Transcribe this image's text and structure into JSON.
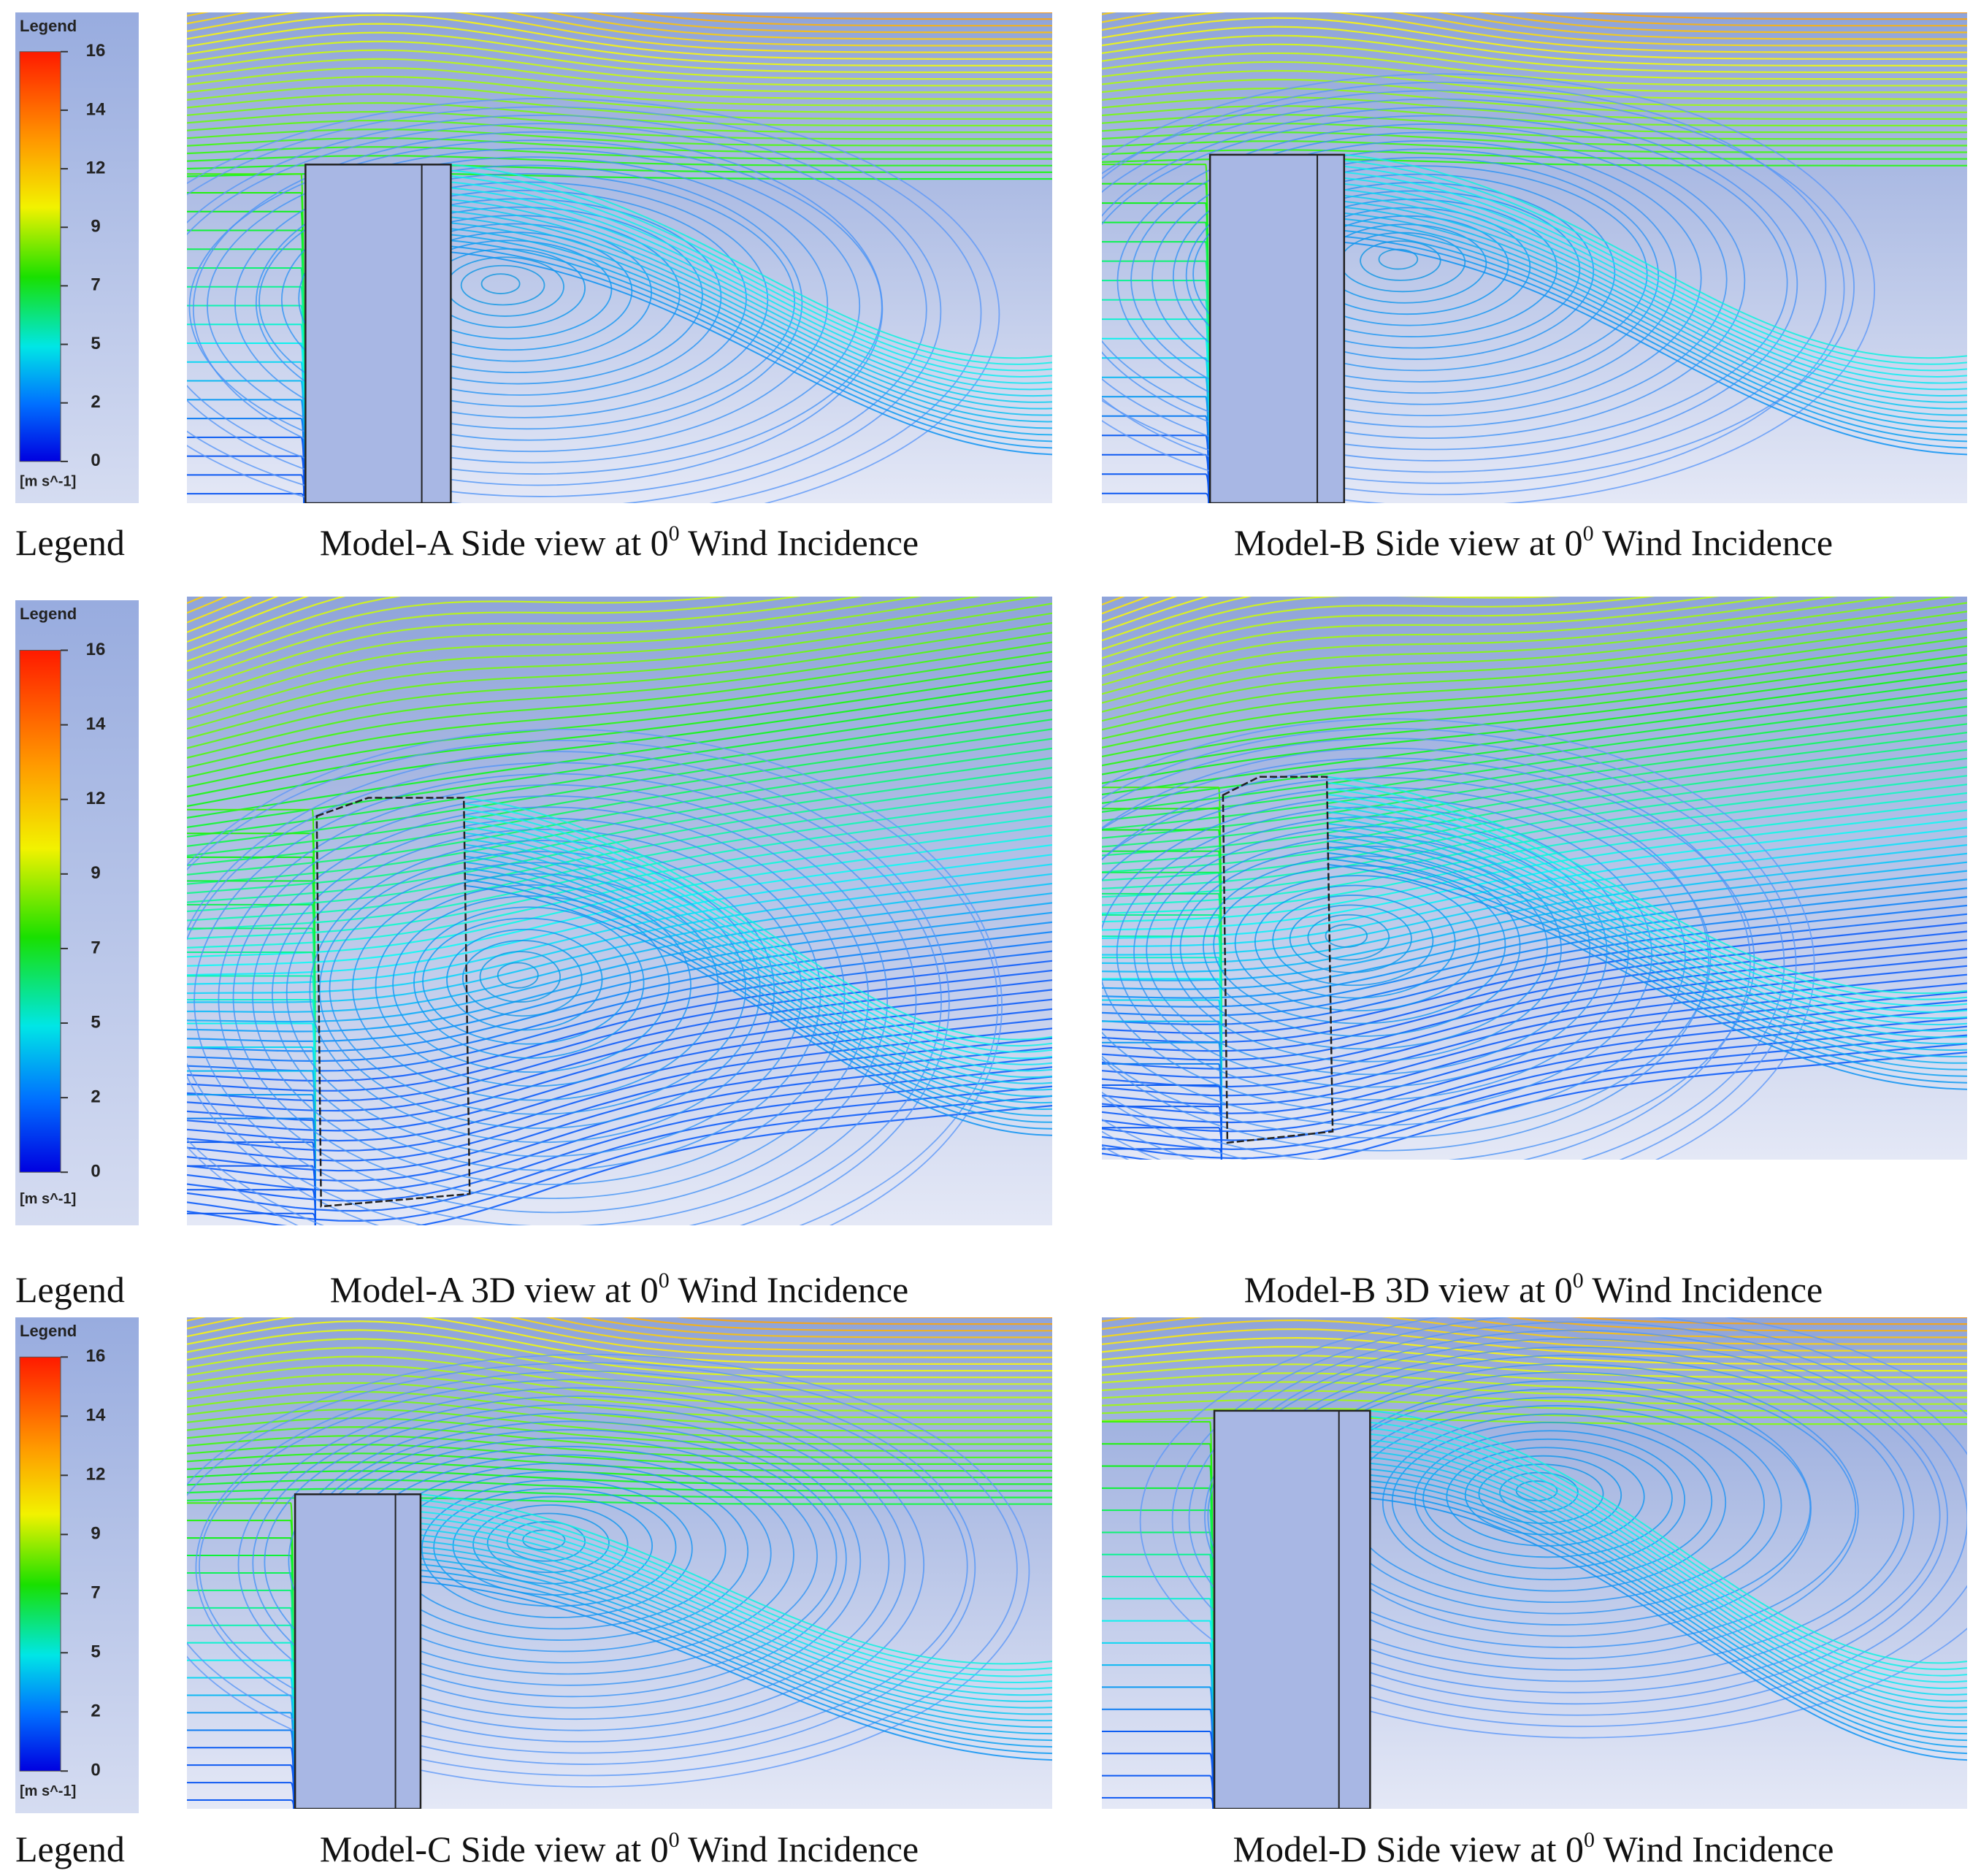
{
  "legends": [
    {
      "title": "Legend",
      "ticks": [
        16,
        14,
        12,
        9,
        7,
        5,
        2,
        0
      ],
      "unit": "[m s^-1]"
    },
    {
      "title": "Legend",
      "ticks": [
        16,
        14,
        12,
        9,
        7,
        5,
        2,
        0
      ],
      "unit": "[m s^-1]"
    },
    {
      "title": "Legend",
      "ticks": [
        16,
        14,
        12,
        9,
        7,
        5,
        2,
        0
      ],
      "unit": "[m s^-1]"
    }
  ],
  "row_labels": [
    "Legend",
    "Legend",
    "Legend"
  ],
  "captions": [
    {
      "text": "Model-A Side view at 0",
      "sup": "0",
      "rest": " Wind Incidence"
    },
    {
      "text": "Model-B Side view at 0",
      "sup": "0",
      "rest": " Wind Incidence"
    },
    {
      "text": "Model-A 3D view at 0",
      "sup": "0",
      "rest": " Wind Incidence"
    },
    {
      "text": "Model-B 3D view at 0",
      "sup": "0",
      "rest": " Wind Incidence"
    },
    {
      "text": "Model-C Side view at 0",
      "sup": "0",
      "rest": " Wind Incidence"
    },
    {
      "text": "Model-D Side view at 0",
      "sup": "0",
      "rest": " Wind Incidence"
    }
  ]
}
